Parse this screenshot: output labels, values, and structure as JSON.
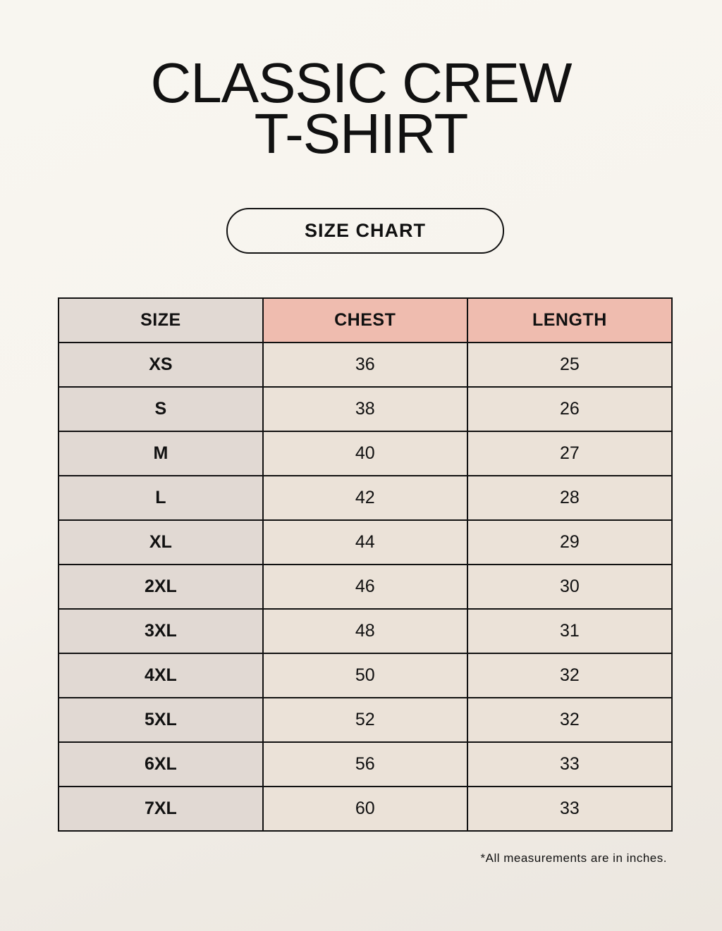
{
  "title": {
    "line1": "CLASSIC CREW",
    "line2": "T-SHIRT"
  },
  "subtitle": "SIZE CHART",
  "table": {
    "headers": [
      "SIZE",
      "CHEST",
      "LENGTH"
    ],
    "rows": [
      [
        "XS",
        "36",
        "25"
      ],
      [
        "S",
        "38",
        "26"
      ],
      [
        "M",
        "40",
        "27"
      ],
      [
        "L",
        "42",
        "28"
      ],
      [
        "XL",
        "44",
        "29"
      ],
      [
        "2XL",
        "46",
        "30"
      ],
      [
        "3XL",
        "48",
        "31"
      ],
      [
        "4XL",
        "50",
        "32"
      ],
      [
        "5XL",
        "52",
        "32"
      ],
      [
        "6XL",
        "56",
        "33"
      ],
      [
        "7XL",
        "60",
        "33"
      ]
    ]
  },
  "note": "*All measurements are in inches.",
  "colors": {
    "size_column": "#e1d9d3",
    "header_accent": "#efbcaf",
    "cell": "#ebe2d8"
  }
}
